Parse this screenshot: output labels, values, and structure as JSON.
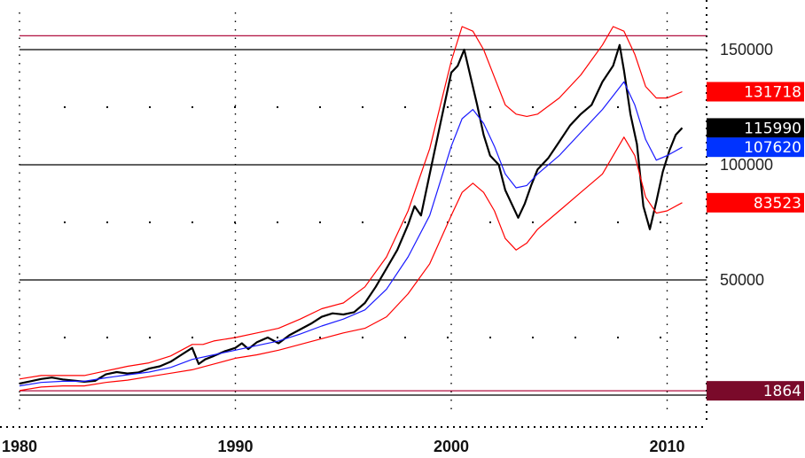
{
  "chart_data": {
    "type": "line",
    "title": "",
    "xlabel": "",
    "ylabel": "",
    "xlim": [
      1980,
      2012
    ],
    "ylim": [
      -5000,
      160000
    ],
    "grid": true,
    "x_ticks": [
      {
        "value": 1980,
        "label": "1980"
      },
      {
        "value": 1990,
        "label": "1990"
      },
      {
        "value": 2000,
        "label": "2000"
      },
      {
        "value": 2010,
        "label": "2010"
      }
    ],
    "y_ticks": [
      {
        "value": 150000,
        "label": "150000"
      },
      {
        "value": 100000,
        "label": "100000"
      },
      {
        "value": 50000,
        "label": "50000"
      }
    ],
    "value_tags": [
      {
        "value": 131718,
        "label": "131718",
        "bg": "#ff0000",
        "fg": "#ffffff"
      },
      {
        "value": 115990,
        "label": "115990",
        "bg": "#000000",
        "fg": "#ffffff"
      },
      {
        "value": 107620,
        "label": "107620",
        "bg": "#0033ff",
        "fg": "#ffffff"
      },
      {
        "value": 83523,
        "label": "83523",
        "bg": "#ff0000",
        "fg": "#ffffff"
      },
      {
        "value": 1864,
        "label": "1864",
        "bg": "#7a0a2a",
        "fg": "#ffffff"
      }
    ],
    "reference_lines": [
      {
        "value": 156000,
        "color": "#b01040"
      },
      {
        "value": 1864,
        "color": "#b01040"
      }
    ],
    "series": [
      {
        "color": "#000000",
        "points": [
          [
            1980.0,
            5000
          ],
          [
            1980.5,
            6000
          ],
          [
            1981.0,
            7000
          ],
          [
            1981.5,
            7600
          ],
          [
            1982.0,
            6800
          ],
          [
            1982.5,
            6300
          ],
          [
            1983.0,
            5800
          ],
          [
            1983.5,
            6200
          ],
          [
            1984.0,
            9000
          ],
          [
            1984.5,
            10000
          ],
          [
            1985.0,
            9400
          ],
          [
            1985.5,
            9800
          ],
          [
            1986.0,
            11500
          ],
          [
            1986.5,
            12500
          ],
          [
            1987.0,
            14500
          ],
          [
            1987.5,
            17500
          ],
          [
            1988.0,
            20500
          ],
          [
            1988.3,
            13500
          ],
          [
            1988.6,
            15500
          ],
          [
            1989.0,
            17000
          ],
          [
            1989.5,
            19000
          ],
          [
            1990.0,
            20500
          ],
          [
            1990.3,
            22500
          ],
          [
            1990.6,
            20000
          ],
          [
            1991.0,
            23000
          ],
          [
            1991.5,
            25000
          ],
          [
            1992.0,
            22500
          ],
          [
            1992.5,
            26000
          ],
          [
            1993.0,
            28500
          ],
          [
            1993.5,
            31000
          ],
          [
            1994.0,
            34000
          ],
          [
            1994.5,
            35500
          ],
          [
            1995.0,
            35000
          ],
          [
            1995.5,
            36000
          ],
          [
            1996.0,
            40000
          ],
          [
            1996.5,
            47000
          ],
          [
            1997.0,
            55000
          ],
          [
            1997.5,
            63000
          ],
          [
            1998.0,
            74000
          ],
          [
            1998.3,
            82000
          ],
          [
            1998.6,
            78000
          ],
          [
            1999.0,
            96000
          ],
          [
            1999.5,
            118000
          ],
          [
            2000.0,
            140000
          ],
          [
            2000.3,
            143000
          ],
          [
            2000.6,
            150000
          ],
          [
            2000.9,
            138000
          ],
          [
            2001.2,
            126000
          ],
          [
            2001.5,
            113000
          ],
          [
            2001.8,
            104000
          ],
          [
            2002.2,
            100000
          ],
          [
            2002.5,
            89000
          ],
          [
            2002.8,
            83000
          ],
          [
            2003.1,
            77000
          ],
          [
            2003.4,
            83000
          ],
          [
            2003.7,
            91000
          ],
          [
            2004.0,
            98000
          ],
          [
            2004.5,
            103000
          ],
          [
            2005.0,
            110000
          ],
          [
            2005.5,
            117000
          ],
          [
            2006.0,
            122000
          ],
          [
            2006.5,
            126000
          ],
          [
            2007.0,
            136000
          ],
          [
            2007.5,
            143000
          ],
          [
            2007.8,
            152000
          ],
          [
            2008.0,
            141000
          ],
          [
            2008.3,
            122000
          ],
          [
            2008.6,
            109000
          ],
          [
            2008.9,
            82000
          ],
          [
            2009.2,
            72000
          ],
          [
            2009.5,
            84000
          ],
          [
            2009.8,
            97000
          ],
          [
            2010.1,
            106000
          ],
          [
            2010.4,
            113000
          ],
          [
            2010.7,
            116000
          ]
        ]
      },
      {
        "color": "#1a1aff",
        "points": [
          [
            1980.0,
            4000
          ],
          [
            1981.0,
            5500
          ],
          [
            1982.0,
            6000
          ],
          [
            1983.0,
            6000
          ],
          [
            1984.0,
            7500
          ],
          [
            1985.0,
            8800
          ],
          [
            1986.0,
            10000
          ],
          [
            1987.0,
            12000
          ],
          [
            1988.0,
            15500
          ],
          [
            1989.0,
            17500
          ],
          [
            1990.0,
            19500
          ],
          [
            1991.0,
            21500
          ],
          [
            1992.0,
            23500
          ],
          [
            1993.0,
            26500
          ],
          [
            1994.0,
            30000
          ],
          [
            1995.0,
            33000
          ],
          [
            1996.0,
            37000
          ],
          [
            1997.0,
            46000
          ],
          [
            1998.0,
            60000
          ],
          [
            1999.0,
            78000
          ],
          [
            2000.0,
            108000
          ],
          [
            2000.5,
            120000
          ],
          [
            2001.0,
            124000
          ],
          [
            2001.5,
            118000
          ],
          [
            2002.0,
            108000
          ],
          [
            2002.5,
            96000
          ],
          [
            2003.0,
            90000
          ],
          [
            2003.5,
            91000
          ],
          [
            2004.0,
            96000
          ],
          [
            2005.0,
            104000
          ],
          [
            2006.0,
            114000
          ],
          [
            2007.0,
            124000
          ],
          [
            2008.0,
            136000
          ],
          [
            2008.5,
            126000
          ],
          [
            2009.0,
            111000
          ],
          [
            2009.5,
            102000
          ],
          [
            2010.0,
            104000
          ],
          [
            2010.7,
            107620
          ]
        ]
      },
      {
        "color": "#ff0000",
        "points": [
          [
            1980.0,
            7000
          ],
          [
            1981.0,
            8500
          ],
          [
            1982.0,
            8500
          ],
          [
            1983.0,
            8500
          ],
          [
            1984.0,
            10500
          ],
          [
            1985.0,
            12500
          ],
          [
            1986.0,
            14000
          ],
          [
            1987.0,
            17000
          ],
          [
            1988.0,
            22000
          ],
          [
            1988.5,
            22000
          ],
          [
            1989.0,
            23500
          ],
          [
            1990.0,
            25000
          ],
          [
            1991.0,
            27000
          ],
          [
            1992.0,
            29000
          ],
          [
            1993.0,
            33000
          ],
          [
            1994.0,
            37500
          ],
          [
            1995.0,
            40000
          ],
          [
            1996.0,
            47000
          ],
          [
            1997.0,
            60000
          ],
          [
            1998.0,
            80000
          ],
          [
            1999.0,
            107000
          ],
          [
            2000.0,
            145000
          ],
          [
            2000.5,
            160000
          ],
          [
            2001.0,
            158000
          ],
          [
            2001.5,
            150000
          ],
          [
            2002.0,
            138000
          ],
          [
            2002.5,
            126000
          ],
          [
            2003.0,
            122000
          ],
          [
            2003.5,
            121000
          ],
          [
            2004.0,
            122000
          ],
          [
            2005.0,
            129000
          ],
          [
            2006.0,
            139000
          ],
          [
            2007.0,
            152000
          ],
          [
            2007.5,
            160000
          ],
          [
            2008.0,
            158000
          ],
          [
            2008.5,
            148000
          ],
          [
            2009.0,
            134000
          ],
          [
            2009.5,
            129000
          ],
          [
            2010.0,
            129000
          ],
          [
            2010.7,
            131718
          ]
        ]
      },
      {
        "color": "#ff0000",
        "points": [
          [
            1980.0,
            2000
          ],
          [
            1981.0,
            3500
          ],
          [
            1982.0,
            4000
          ],
          [
            1983.0,
            4000
          ],
          [
            1984.0,
            5500
          ],
          [
            1985.0,
            6500
          ],
          [
            1986.0,
            8000
          ],
          [
            1987.0,
            9500
          ],
          [
            1988.0,
            11000
          ],
          [
            1989.0,
            13500
          ],
          [
            1990.0,
            16000
          ],
          [
            1991.0,
            17500
          ],
          [
            1992.0,
            19500
          ],
          [
            1993.0,
            22000
          ],
          [
            1994.0,
            24500
          ],
          [
            1995.0,
            27000
          ],
          [
            1996.0,
            29000
          ],
          [
            1997.0,
            34000
          ],
          [
            1998.0,
            44000
          ],
          [
            1999.0,
            57000
          ],
          [
            2000.0,
            78000
          ],
          [
            2000.5,
            88000
          ],
          [
            2001.0,
            92000
          ],
          [
            2001.5,
            88000
          ],
          [
            2002.0,
            80000
          ],
          [
            2002.5,
            68000
          ],
          [
            2003.0,
            63000
          ],
          [
            2003.5,
            66000
          ],
          [
            2004.0,
            72000
          ],
          [
            2005.0,
            80000
          ],
          [
            2006.0,
            88000
          ],
          [
            2007.0,
            96000
          ],
          [
            2008.0,
            112000
          ],
          [
            2008.5,
            104000
          ],
          [
            2009.0,
            86000
          ],
          [
            2009.5,
            79000
          ],
          [
            2010.0,
            80000
          ],
          [
            2010.7,
            83523
          ]
        ]
      }
    ]
  }
}
